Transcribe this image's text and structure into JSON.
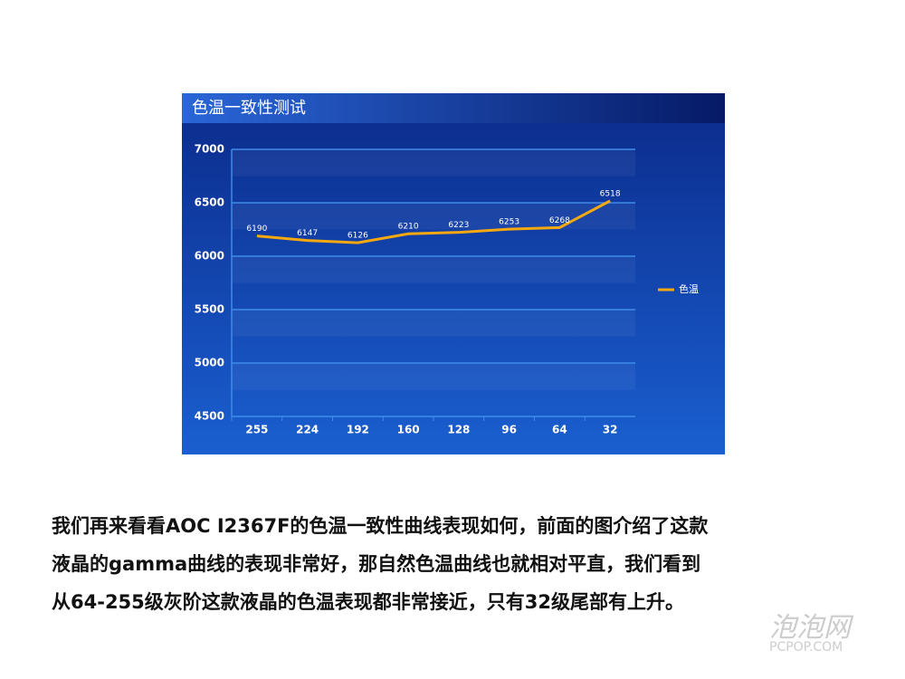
{
  "chart_data": {
    "type": "line",
    "title": "色温一致性测试",
    "categories": [
      "255",
      "224",
      "192",
      "160",
      "128",
      "96",
      "64",
      "32"
    ],
    "series": [
      {
        "name": "色温",
        "color": "#f5a810",
        "values": [
          6190,
          6147,
          6126,
          6210,
          6223,
          6253,
          6268,
          6518
        ]
      }
    ],
    "ylim": [
      4500,
      7000
    ],
    "yticks": [
      4500,
      5000,
      5500,
      6000,
      6500,
      7000
    ],
    "grid": true,
    "legend": "right"
  },
  "article": {
    "lines": [
      "我们再来看看AOC I2367F的色温一致性曲线表现如何，前面的图介绍了这款",
      "液晶的gamma曲线的表现非常好，那自然色温曲线也就相对平直，我们看到",
      "从64-255级灰阶这款液晶的色温表现都非常接近，只有32级尾部有上升。"
    ]
  },
  "watermark": {
    "name": "泡泡网",
    "site": "PCPOP.COM"
  }
}
